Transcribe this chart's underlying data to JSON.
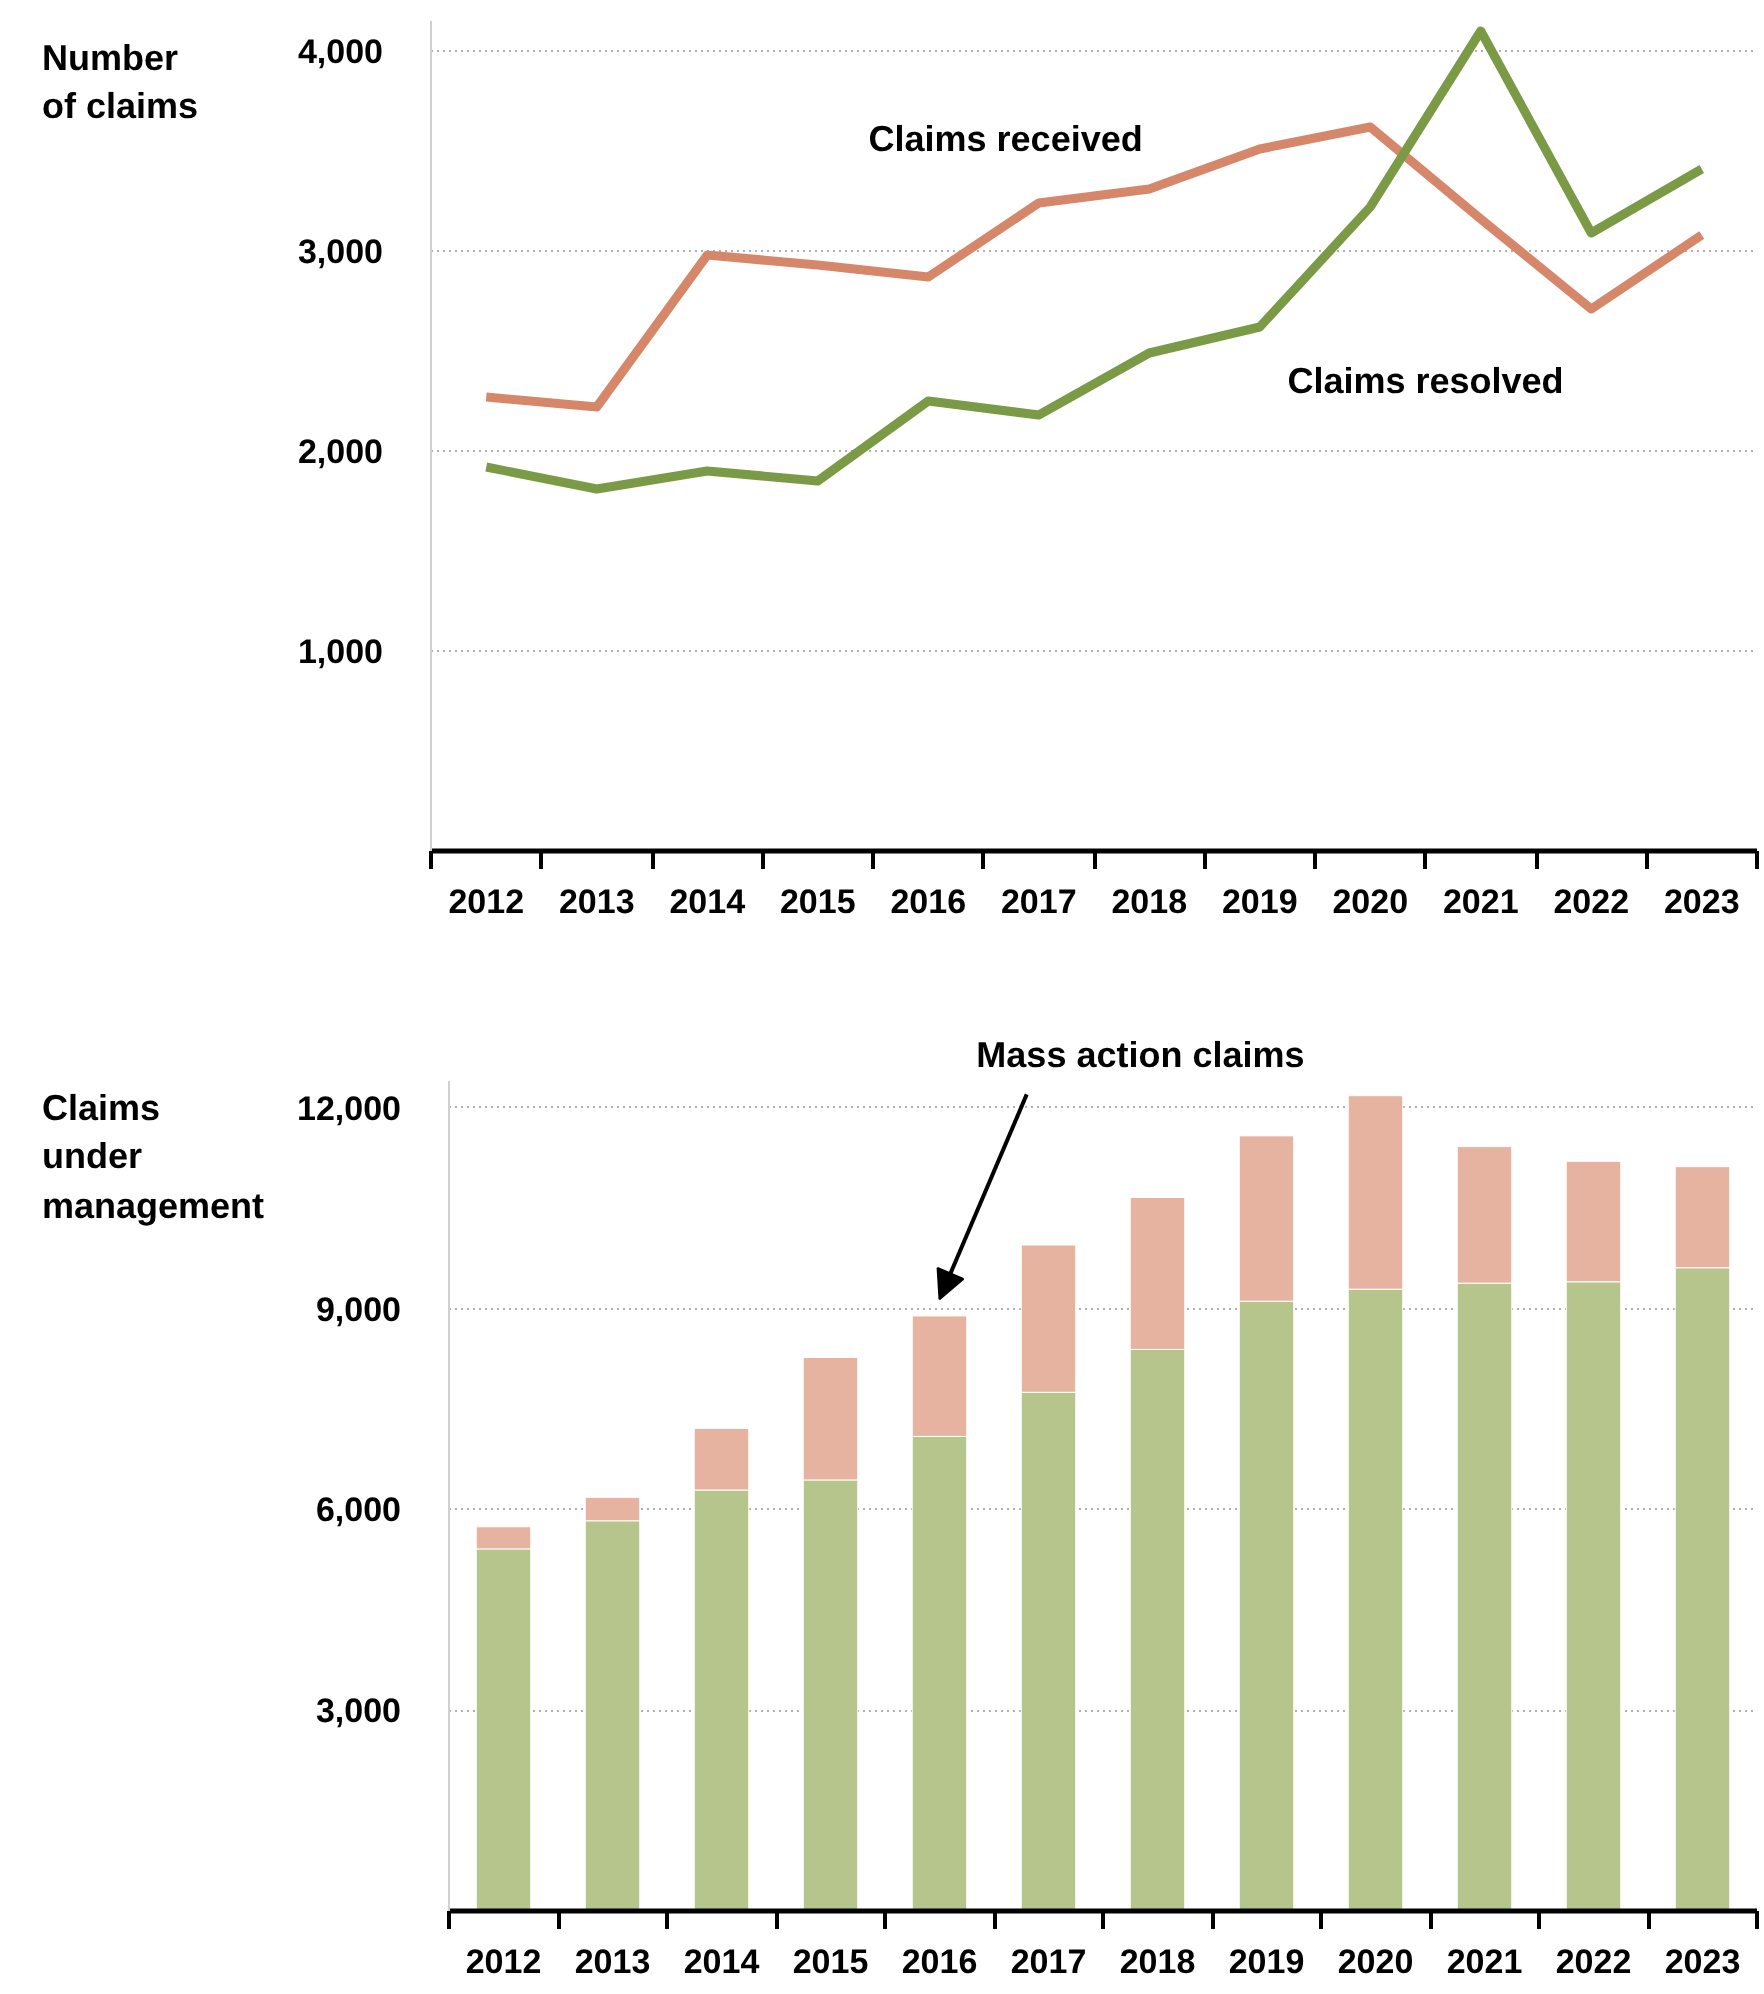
{
  "chart_data": [
    {
      "type": "line",
      "ylabel": "Number of claims",
      "categories": [
        "2012",
        "2013",
        "2014",
        "2015",
        "2016",
        "2017",
        "2018",
        "2019",
        "2020",
        "2021",
        "2022",
        "2023"
      ],
      "series": [
        {
          "name": "Claims received",
          "color": "#d6876a",
          "values": [
            2270,
            2220,
            2980,
            2930,
            2870,
            3240,
            3310,
            3510,
            3620,
            3160,
            2710,
            3080
          ]
        },
        {
          "name": "Claims resolved",
          "color": "#7a9a46",
          "values": [
            1920,
            1810,
            1900,
            1850,
            2250,
            2180,
            2490,
            2620,
            3220,
            4100,
            3090,
            3410
          ]
        }
      ],
      "ylim": [
        0,
        4150
      ],
      "yticks": [
        {
          "value": 1000,
          "label": "1,000"
        },
        {
          "value": 2000,
          "label": "2,000"
        },
        {
          "value": 3000,
          "label": "3,000"
        },
        {
          "value": 4000,
          "label": "4,000"
        }
      ],
      "grid": "y",
      "legend": false,
      "line_style": "solid",
      "marker": "none"
    },
    {
      "type": "bar",
      "stacked": true,
      "ylabel": "Claims under management",
      "categories": [
        "2012",
        "2013",
        "2014",
        "2015",
        "2016",
        "2017",
        "2018",
        "2019",
        "2020",
        "2021",
        "2022",
        "2023"
      ],
      "series": [
        {
          "color": "#b5c58c",
          "values": [
            5410,
            5830,
            6290,
            6440,
            7090,
            7750,
            8390,
            9110,
            9290,
            9380,
            9400,
            9610
          ]
        },
        {
          "name": "Mass action claims",
          "color": "#e5b39f",
          "values": [
            330,
            350,
            920,
            1830,
            1800,
            2200,
            2270,
            2470,
            2890,
            2040,
            1800,
            1510
          ]
        }
      ],
      "ylim": [
        0,
        12400
      ],
      "yticks": [
        {
          "value": 3000,
          "label": "3,000"
        },
        {
          "value": 6000,
          "label": "6,000"
        },
        {
          "value": 9000,
          "label": "9,000"
        },
        {
          "value": 12000,
          "label": "12,000"
        }
      ],
      "grid": "y",
      "legend": false
    }
  ]
}
